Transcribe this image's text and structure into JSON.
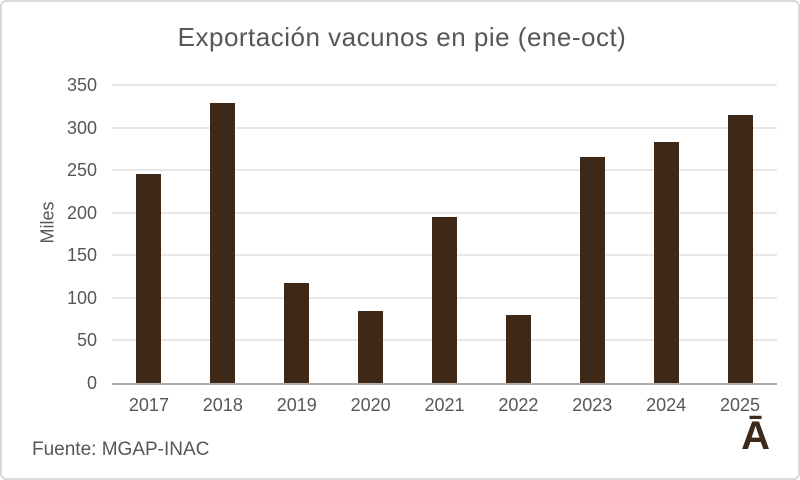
{
  "chart_data": {
    "type": "bar",
    "title": "Exportación vacunos en pie (ene-oct)",
    "xlabel": "",
    "ylabel": "Miles",
    "categories": [
      "2017",
      "2018",
      "2019",
      "2020",
      "2021",
      "2022",
      "2023",
      "2024",
      "2025"
    ],
    "values": [
      246,
      329,
      117,
      85,
      195,
      80,
      265,
      283,
      315
    ],
    "yticks": [
      0,
      50,
      100,
      150,
      200,
      250,
      300,
      350
    ],
    "ylim": [
      0,
      350
    ],
    "grid": "horizontal",
    "legend": "none",
    "bar_color": "#3e2817",
    "grid_color": "#e9e7e7",
    "axis_line_color": "#aeaaaa",
    "text_color": "#5b5555"
  },
  "footer": {
    "source": "Fuente: MGAP-INAC",
    "logo": "Ā"
  }
}
